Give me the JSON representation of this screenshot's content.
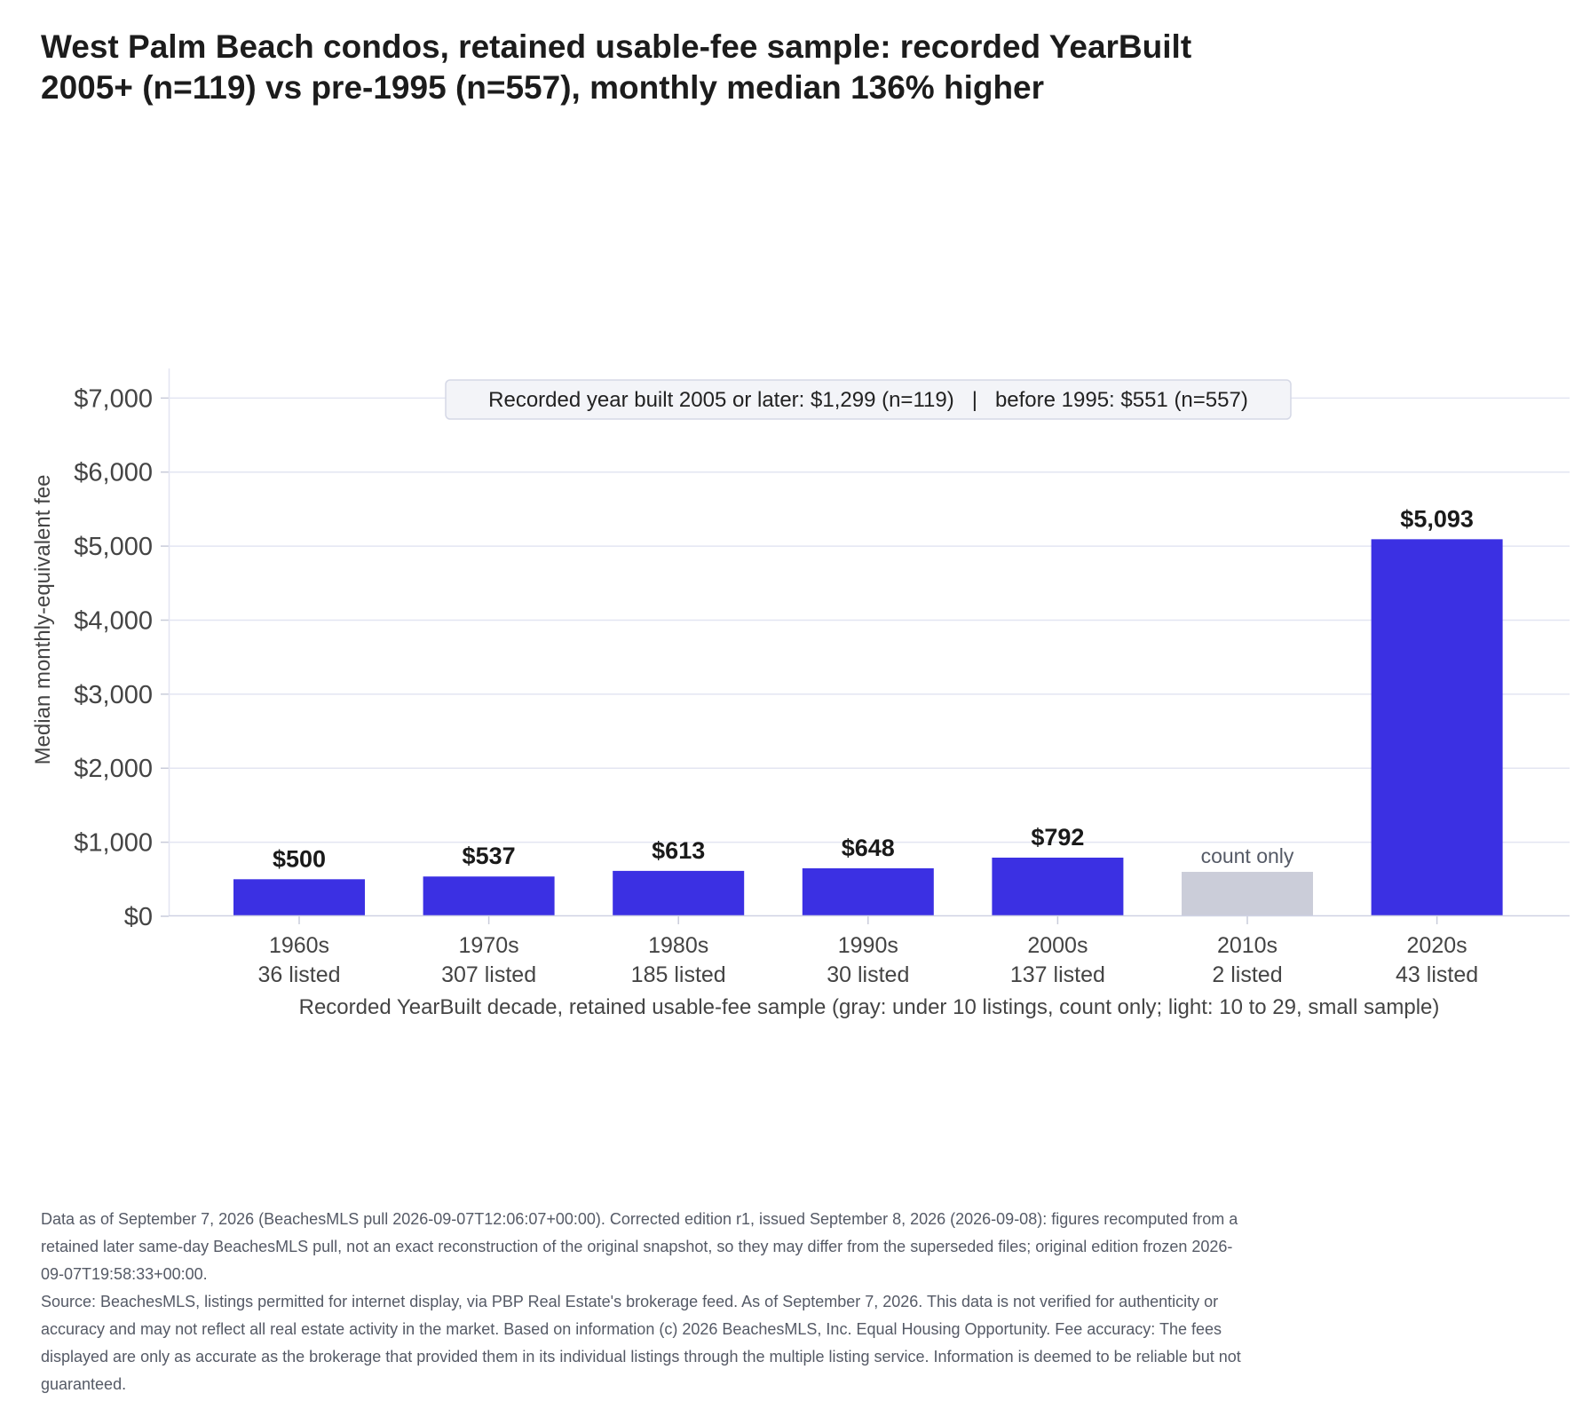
{
  "chart_data": {
    "type": "bar",
    "title": "West Palm Beach condos, retained usable-fee sample: recorded YearBuilt 2005+ (n=119) vs pre-1995 (n=557), monthly median 136% higher",
    "xlabel": "Recorded YearBuilt decade, retained usable-fee sample (gray: under 10 listings, count only; light: 10 to 29, small sample)",
    "ylabel": "Median monthly-equivalent fee",
    "ylim": [
      0,
      7400
    ],
    "yticks": [
      0,
      1000,
      2000,
      3000,
      4000,
      5000,
      6000,
      7000
    ],
    "ytick_labels": [
      "$0",
      "$1,000",
      "$2,000",
      "$3,000",
      "$4,000",
      "$5,000",
      "$6,000",
      "$7,000"
    ],
    "grid": true,
    "categories": [
      "1960s",
      "1970s",
      "1980s",
      "1990s",
      "2000s",
      "2010s",
      "2020s"
    ],
    "counts": [
      "36 listed",
      "307 listed",
      "185 listed",
      "30 listed",
      "137 listed",
      "2 listed",
      "43 listed"
    ],
    "values": [
      500,
      537,
      613,
      648,
      792,
      600,
      5093
    ],
    "value_labels": [
      "$500",
      "$537",
      "$613",
      "$648",
      "$792",
      "count only",
      "$5,093"
    ],
    "bar_status": [
      "full",
      "full",
      "full",
      "full",
      "full",
      "count-only",
      "full"
    ],
    "annotation": "Recorded year built 2005 or later: $1,299 (n=119)   |   before 1995: $551 (n=557)",
    "colors": {
      "bar": "#3b30e3",
      "count_only": "#cbcdd9",
      "grid": "#e3e5f2",
      "axis_text": "#444444",
      "muted_text": "#555a66"
    }
  },
  "footnote": {
    "line1": "Data as of September 7, 2026 (BeachesMLS pull 2026-09-07T12:06:07+00:00). Corrected edition r1, issued September 8, 2026 (2026-09-08): figures recomputed from a retained later same-day BeachesMLS pull, not an exact reconstruction of the original snapshot, so they may differ from the superseded files; original edition frozen 2026-09-07T19:58:33+00:00.",
    "line2": "Source: BeachesMLS, listings permitted for internet display, via PBP Real Estate's brokerage feed. As of September 7, 2026. This data is not verified for authenticity or accuracy and may not reflect all real estate activity in the market. Based on information (c) 2026 BeachesMLS, Inc. Equal Housing Opportunity. Fee accuracy: The fees displayed are only as accurate as the brokerage that provided them in its individual listings through the multiple listing service. Information is deemed to be reliable but not guaranteed."
  }
}
